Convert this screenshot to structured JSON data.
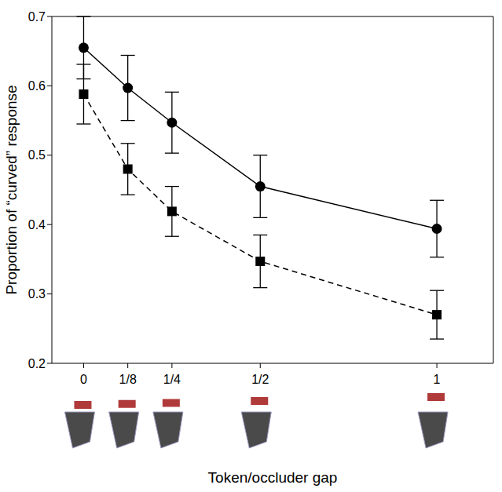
{
  "chart_data": {
    "type": "line",
    "x_label": "Token/occluder gap",
    "y_label": "Proportion of “curved” response",
    "x": [
      0,
      0.125,
      0.25,
      0.5,
      1
    ],
    "xlim": [
      -0.09,
      1.16
    ],
    "xticks": [
      0,
      {
        "value": 0.125,
        "label": "1/8"
      },
      {
        "value": 0.25,
        "label": "1/4"
      },
      {
        "value": 0.5,
        "label": "1/2"
      },
      1
    ],
    "ylim": [
      0.2,
      0.7
    ],
    "yticks": [
      0.2,
      0.3,
      0.4,
      0.5,
      0.6,
      0.7
    ],
    "series": [
      {
        "color": "#000000",
        "marker": "circle",
        "line_style": "solid",
        "values": [
          0.655,
          0.597,
          0.547,
          0.455,
          0.394
        ],
        "errors": [
          0.045,
          0.047,
          0.044,
          0.045,
          0.041
        ]
      },
      {
        "color": "#000000",
        "marker": "square",
        "line_style": "dashed",
        "values": [
          0.588,
          0.48,
          0.419,
          0.347,
          0.27
        ],
        "errors": [
          0.043,
          0.037,
          0.036,
          0.038,
          0.035
        ]
      }
    ]
  }
}
